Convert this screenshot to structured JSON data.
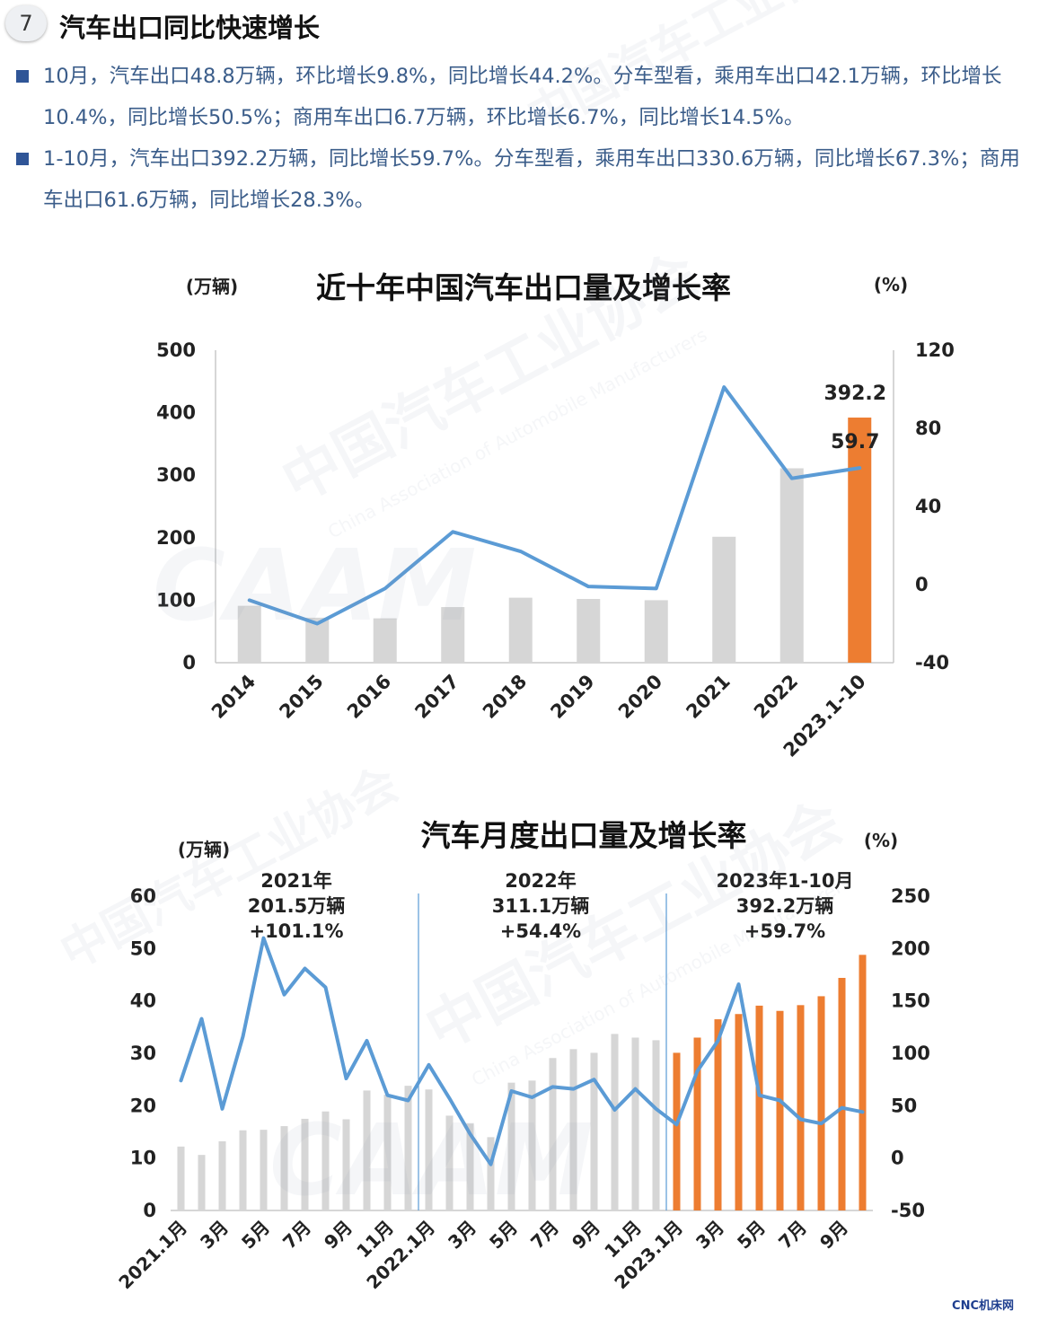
{
  "header": {
    "number": "7",
    "title": "汽车出口同比快速增长"
  },
  "bullets": [
    "10月，汽车出口48.8万辆，环比增长9.8%，同比增长44.2%。分车型看，乘用车出口42.1万辆，环比增长10.4%，同比增长50.5%；商用车出口6.7万辆，环比增长6.7%，同比增长14.5%。",
    "1-10月，汽车出口392.2万辆，同比增长59.7%。分车型看，乘用车出口330.6万辆，同比增长67.3%；商用车出口61.6万辆，同比增长28.3%。"
  ],
  "watermark": {
    "cn": "中国汽车工业协会",
    "en": "China Association of Automobile Manufacturers",
    "logo": "CAAM"
  },
  "footer": "CNC机床网",
  "colors": {
    "bar_gray": "#d6d6d6",
    "bar_orange": "#ed7d31",
    "line_blue": "#5b9bd5",
    "bullet_text": "#3b5d8a",
    "bullet_square": "#2f5597"
  },
  "chart_data": [
    {
      "type": "bar+line",
      "title": "近十年中国汽车出口量及增长率",
      "ylabel_left": "(万辆)",
      "ylabel_right": "(%)",
      "categories": [
        "2014",
        "2015",
        "2016",
        "2017",
        "2018",
        "2019",
        "2020",
        "2021",
        "2022",
        "2023.1-10"
      ],
      "ylim_left": [
        0,
        500
      ],
      "yticks_left": [
        0,
        100,
        200,
        300,
        400,
        500
      ],
      "ylim_right": [
        -40,
        120
      ],
      "yticks_right": [
        -40,
        0,
        40,
        80,
        120
      ],
      "series": [
        {
          "axis": "left",
          "type": "bar",
          "values": [
            91,
            72,
            71,
            89,
            104,
            102,
            100,
            201.5,
            311.1,
            392.2
          ],
          "highlight_index": 9
        },
        {
          "axis": "right",
          "type": "line",
          "values": [
            -8,
            -20,
            -2,
            27,
            17,
            -1,
            -2,
            101.1,
            54.4,
            59.7
          ]
        }
      ],
      "annotations": [
        {
          "text": "392.2",
          "target": "bar",
          "index": 9
        },
        {
          "text": "59.7",
          "target": "line",
          "index": 9
        }
      ]
    },
    {
      "type": "bar+line",
      "title": "汽车月度出口量及增长率",
      "ylabel_left": "(万辆)",
      "ylabel_right": "(%)",
      "categories": [
        "2021.1月",
        "2月",
        "3月",
        "4月",
        "5月",
        "6月",
        "7月",
        "8月",
        "9月",
        "10月",
        "11月",
        "12月",
        "2022.1月",
        "2月",
        "3月",
        "4月",
        "5月",
        "6月",
        "7月",
        "8月",
        "9月",
        "10月",
        "11月",
        "12月",
        "2023.1月",
        "2月",
        "3月",
        "4月",
        "5月",
        "6月",
        "7月",
        "8月",
        "9月",
        "10月"
      ],
      "xtick_labels": [
        "2021.1月",
        "3月",
        "5月",
        "7月",
        "9月",
        "11月",
        "2022.1月",
        "3月",
        "5月",
        "7月",
        "9月",
        "11月",
        "2023.1月",
        "3月",
        "5月",
        "7月",
        "9月"
      ],
      "ylim_left": [
        0,
        60
      ],
      "yticks_left": [
        0,
        10,
        20,
        30,
        40,
        50,
        60
      ],
      "ylim_right": [
        -50,
        250
      ],
      "yticks_right": [
        -50,
        0,
        50,
        100,
        150,
        200,
        250
      ],
      "series": [
        {
          "axis": "left",
          "type": "bar",
          "values": [
            12.2,
            10.6,
            13.2,
            15.3,
            15.4,
            16.1,
            17.5,
            18.9,
            17.4,
            22.9,
            22.1,
            23.8,
            23.1,
            18.1,
            16.6,
            14.0,
            24.4,
            24.8,
            29.1,
            30.8,
            30.1,
            33.7,
            33.0,
            32.5,
            30.1,
            33.0,
            36.5,
            37.5,
            39.1,
            38.1,
            39.2,
            40.9,
            44.4,
            48.8
          ],
          "highlight_from_index": 24
        },
        {
          "axis": "right",
          "type": "line",
          "values": [
            74,
            133,
            47,
            116,
            210,
            156,
            181,
            163,
            76,
            112,
            60,
            55,
            89,
            57,
            23,
            -6,
            64,
            58,
            68,
            66,
            75,
            46,
            66,
            47,
            32,
            83,
            112,
            166,
            60,
            55,
            37,
            33,
            48,
            44
          ]
        }
      ],
      "section_dividers_after_index": [
        11,
        23
      ],
      "sections": [
        {
          "line1": "2021年",
          "line2": "201.5万辆",
          "line3": "+101.1%"
        },
        {
          "line1": "2022年",
          "line2": "311.1万辆",
          "line3": "+54.4%"
        },
        {
          "line1": "2023年1-10月",
          "line2": "392.2万辆",
          "line3": "+59.7%"
        }
      ]
    }
  ]
}
